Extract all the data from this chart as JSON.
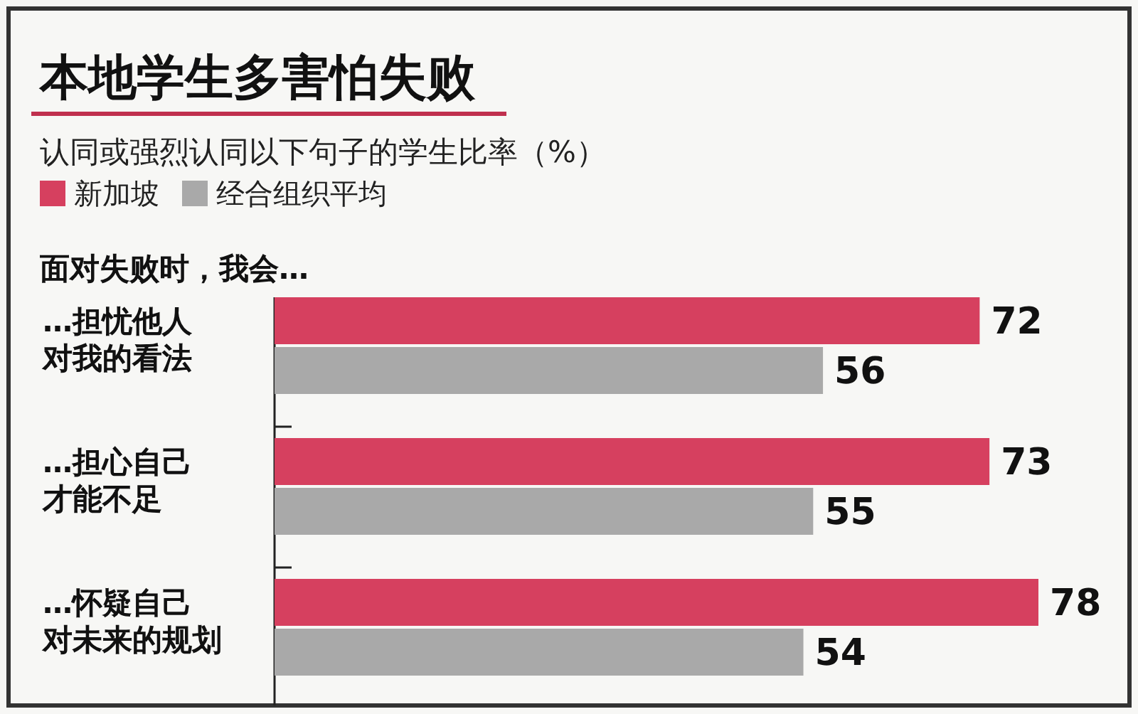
{
  "chart_data": {
    "type": "bar",
    "orientation": "horizontal",
    "title": "本地学生多害怕失败",
    "subtitle": "认同或强烈认同以下句子的学生比率（%）",
    "annotations": [
      "面对失败时，我会…"
    ],
    "categories": [
      "…担忧他人对我的看法",
      "…担心自己才能不足",
      "…怀疑自己对未来的规划"
    ],
    "series": [
      {
        "name": "新加坡",
        "color": "#d6405f",
        "values": [
          72,
          73,
          78
        ]
      },
      {
        "name": "经合组织平均",
        "color": "#a9a9a9",
        "values": [
          56,
          55,
          54
        ]
      }
    ],
    "data_labels": true,
    "legend": "top left",
    "grid": false
  }
}
